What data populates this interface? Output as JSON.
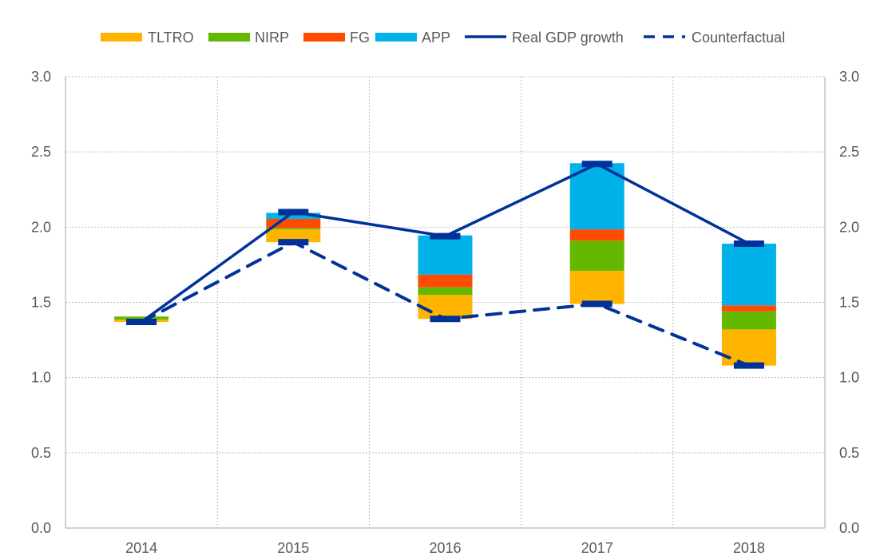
{
  "chart_data": {
    "type": "bar",
    "stacked": true,
    "title": "",
    "xlabel": "",
    "ylabel": "",
    "ylim": [
      0,
      3.0
    ],
    "yticks": [
      "0.0",
      "0.5",
      "1.0",
      "1.5",
      "2.0",
      "2.5",
      "3.0"
    ],
    "grid": true,
    "legend_position": "top",
    "categories": [
      "2014",
      "2015",
      "2016",
      "2017",
      "2018"
    ],
    "series": [
      {
        "name": "TLTRO",
        "kind": "bar",
        "color": "#FFB400",
        "values": [
          0.016,
          0.085,
          0.16,
          0.22,
          0.24
        ]
      },
      {
        "name": "NIRP",
        "kind": "bar",
        "color": "#65B800",
        "values": [
          0.02,
          0.01,
          0.05,
          0.2,
          0.12
        ]
      },
      {
        "name": "FG",
        "kind": "bar",
        "color": "#FF4B00",
        "values": [
          0.0,
          0.06,
          0.085,
          0.075,
          0.04
        ]
      },
      {
        "name": "APP",
        "kind": "bar",
        "color": "#00B1EA",
        "values": [
          0.0,
          0.04,
          0.26,
          0.44,
          0.41
        ]
      },
      {
        "name": "Real GDP growth",
        "kind": "line",
        "color": "#003299",
        "values": [
          1.37,
          2.1,
          1.94,
          2.42,
          1.89
        ]
      },
      {
        "name": "Counterfactual",
        "kind": "dashed-line",
        "color": "#003299",
        "values": [
          1.37,
          1.9,
          1.39,
          1.49,
          1.08
        ]
      }
    ]
  }
}
